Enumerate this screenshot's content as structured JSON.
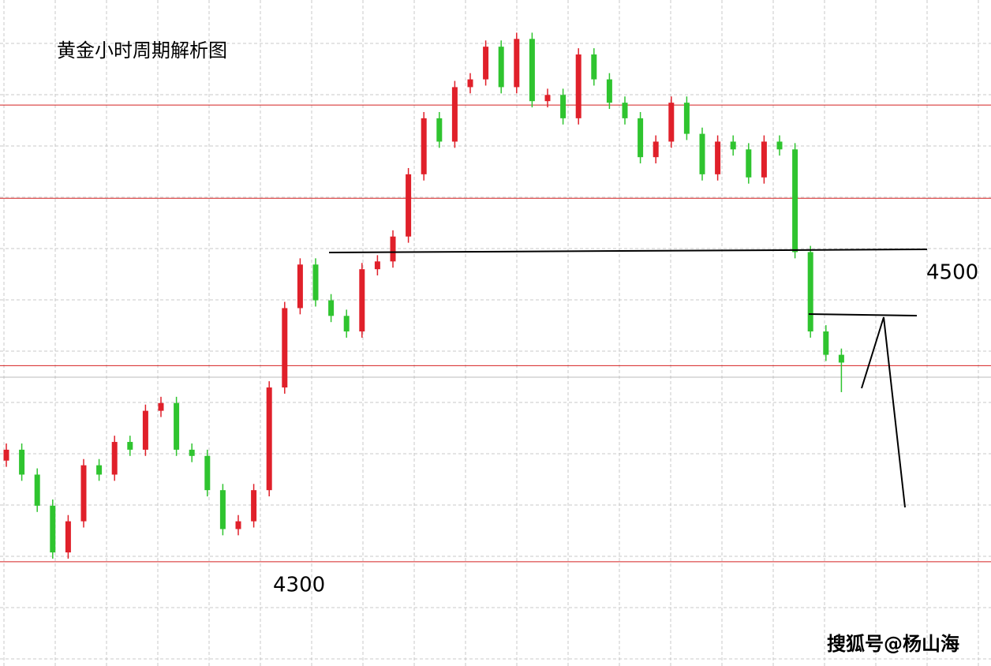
{
  "chart_data": {
    "type": "candlestick",
    "title": "黄金小时周期解析图",
    "annotations": [
      "4500",
      "4300"
    ],
    "watermark": "搜狐号@杨山海",
    "ylim": [
      4233,
      4661
    ],
    "up_color": "#e0202a",
    "down_color": "#2fc42f",
    "levels": [
      4593.5,
      4533.6,
      4426,
      4300
    ],
    "level_color": "#d42020",
    "open": [
      4365,
      4372,
      4356,
      4336,
      4306,
      4326,
      4362,
      4356,
      4377,
      4372,
      4397,
      4402,
      4372,
      4368,
      4346,
      4321,
      4326,
      4346,
      4412,
      4463,
      4491,
      4468,
      4458,
      4448,
      4488,
      4493,
      4509,
      4549,
      4585,
      4570,
      4605,
      4610,
      4631,
      4605,
      4636,
      4596,
      4600,
      4585,
      4626,
      4610,
      4595,
      4585,
      4560,
      4570,
      4595,
      4575,
      4549,
      4570,
      4565,
      4547,
      4570,
      4565,
      4499,
      4448,
      4433
    ],
    "high": [
      4376,
      4376,
      4360,
      4340,
      4330,
      4366,
      4366,
      4381,
      4381,
      4401,
      4406,
      4406,
      4376,
      4372,
      4350,
      4330,
      4350,
      4416,
      4467,
      4495,
      4495,
      4472,
      4462,
      4492,
      4497,
      4513,
      4553,
      4589,
      4589,
      4609,
      4614,
      4635,
      4635,
      4640,
      4640,
      4604,
      4604,
      4630,
      4630,
      4614,
      4599,
      4589,
      4574,
      4599,
      4599,
      4579,
      4574,
      4574,
      4569,
      4574,
      4574,
      4569,
      4503,
      4452,
      4437
    ],
    "low": [
      4361,
      4352,
      4332,
      4302,
      4302,
      4322,
      4352,
      4352,
      4368,
      4368,
      4393,
      4368,
      4364,
      4342,
      4317,
      4317,
      4322,
      4342,
      4408,
      4459,
      4464,
      4454,
      4444,
      4444,
      4484,
      4489,
      4505,
      4545,
      4566,
      4566,
      4601,
      4606,
      4601,
      4601,
      4592,
      4592,
      4581,
      4581,
      4606,
      4591,
      4581,
      4556,
      4556,
      4566,
      4571,
      4545,
      4545,
      4561,
      4543,
      4543,
      4561,
      4495,
      4444,
      4429,
      4409
    ],
    "close": [
      4372,
      4356,
      4336,
      4306,
      4326,
      4362,
      4356,
      4377,
      4372,
      4397,
      4402,
      4372,
      4368,
      4346,
      4321,
      4326,
      4346,
      4412,
      4463,
      4491,
      4468,
      4458,
      4448,
      4488,
      4493,
      4509,
      4549,
      4585,
      4570,
      4605,
      4610,
      4631,
      4605,
      4636,
      4596,
      4600,
      4585,
      4626,
      4610,
      4595,
      4585,
      4560,
      4570,
      4595,
      4575,
      4549,
      4570,
      4565,
      4547,
      4570,
      4565,
      4499,
      4448,
      4433,
      4428
    ]
  }
}
